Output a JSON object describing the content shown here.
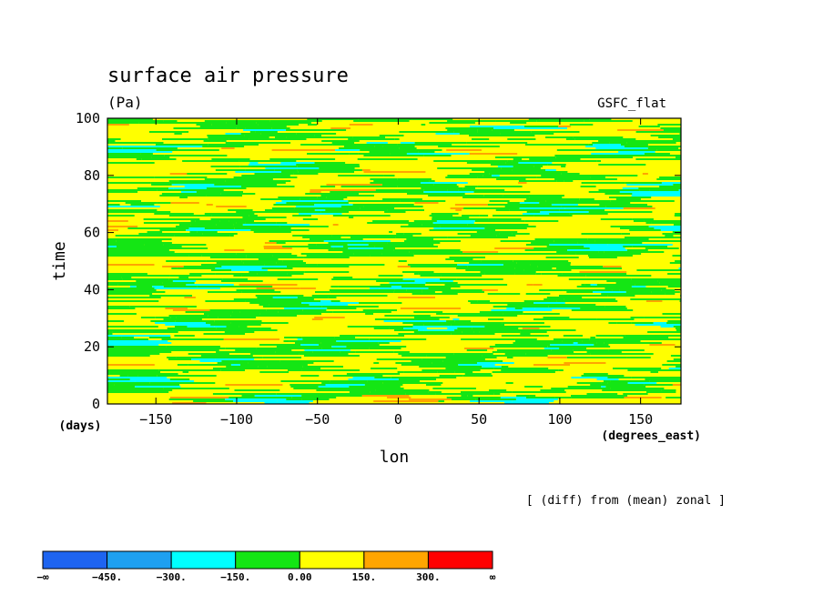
{
  "chart_data": {
    "type": "heatmap",
    "title": "surface air pressure",
    "units": "(Pa)",
    "dataset": "GSFC_flat",
    "xlabel": "lon",
    "ylabel": "time",
    "x_units": "(degrees_east)",
    "y_units": "(days)",
    "note": "[ (diff) from (mean) zonal ]",
    "xlim": [
      -180,
      175
    ],
    "ylim": [
      0,
      100
    ],
    "x_ticks": [
      -150,
      -100,
      -50,
      0,
      50,
      100,
      150
    ],
    "y_ticks": [
      0,
      20,
      40,
      60,
      80,
      100
    ],
    "x_tick_labels": [
      "−150",
      "−100",
      "−50",
      "0",
      "50",
      "100",
      "150"
    ],
    "y_tick_labels": [
      "0",
      "20",
      "40",
      "60",
      "80",
      "100"
    ],
    "value_bins": [
      {
        "min": "-inf",
        "max": -450,
        "color": "#1e64f0"
      },
      {
        "min": -450,
        "max": -300,
        "color": "#1ea0f0"
      },
      {
        "min": -300,
        "max": -150,
        "color": "#00ffff"
      },
      {
        "min": -150,
        "max": 0,
        "color": "#14e614"
      },
      {
        "min": 0,
        "max": 150,
        "color": "#ffff00"
      },
      {
        "min": 150,
        "max": 300,
        "color": "#ffa500"
      },
      {
        "min": 300,
        "max": "inf",
        "color": "#ff0000"
      }
    ],
    "colorbar_labels": [
      "−∞",
      "−450.",
      "−300.",
      "−150.",
      "0.00",
      "150.",
      "300.",
      "∞"
    ],
    "grid": false,
    "legend": "horizontal colorbar bottom-left",
    "field_description": "noisy zonally-banded anomalies alternating between -150..0 (green) and 0..150 (yellow) bins with occasional cyan and orange patches; bands tilt slightly, drifting eastward with time"
  }
}
